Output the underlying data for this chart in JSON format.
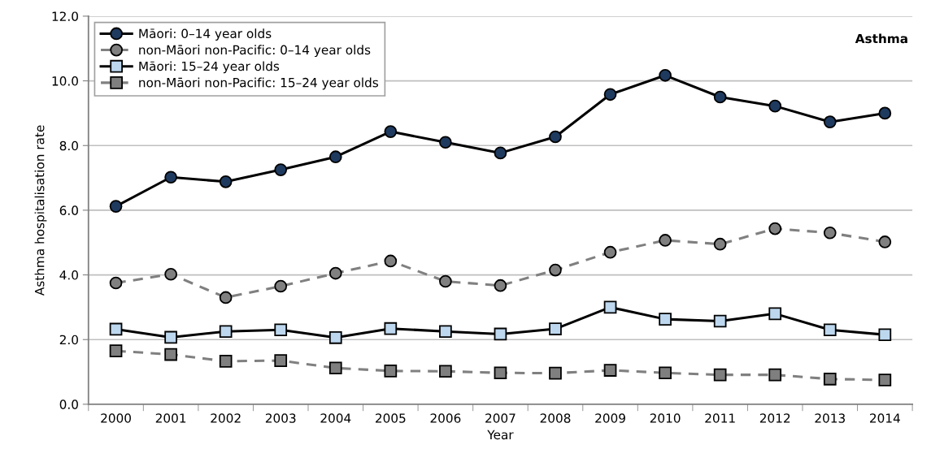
{
  "chart_data": {
    "type": "line",
    "title": "Asthma",
    "xlabel": "Year",
    "ylabel": "Asthma hospitalisation rate",
    "categories": [
      "2000",
      "2001",
      "2002",
      "2003",
      "2004",
      "2005",
      "2006",
      "2007",
      "2008",
      "2009",
      "2010",
      "2011",
      "2012",
      "2013",
      "2014"
    ],
    "series": [
      {
        "name": "Māori: 0–14 year olds",
        "color": "#1f3a5f",
        "marker": "circle",
        "line_style": "solid",
        "values": [
          6.12,
          7.02,
          6.88,
          7.25,
          7.65,
          8.43,
          8.1,
          7.77,
          8.27,
          9.58,
          10.17,
          9.5,
          9.22,
          8.73,
          9.0
        ]
      },
      {
        "name": "non-Māori non-Pacific: 0–14 year olds",
        "color": "#808080",
        "marker": "circle",
        "line_style": "dashed",
        "values": [
          3.75,
          4.02,
          3.3,
          3.65,
          4.05,
          4.43,
          3.8,
          3.67,
          4.15,
          4.7,
          5.07,
          4.95,
          5.43,
          5.3,
          5.02
        ]
      },
      {
        "name": "Māori: 15–24 year olds",
        "color": "#bdd7ee",
        "marker": "square",
        "line_style": "solid",
        "values": [
          2.32,
          2.07,
          2.25,
          2.3,
          2.06,
          2.34,
          2.25,
          2.17,
          2.33,
          3.0,
          2.63,
          2.57,
          2.8,
          2.3,
          2.15
        ]
      },
      {
        "name": "non-Māori non-Pacific: 15–24 year olds",
        "color": "#7f7f7f",
        "marker": "square",
        "line_style": "dashed",
        "values": [
          1.65,
          1.54,
          1.33,
          1.35,
          1.12,
          1.03,
          1.02,
          0.97,
          0.96,
          1.05,
          0.97,
          0.91,
          0.91,
          0.78,
          0.75
        ]
      }
    ],
    "ylim": [
      0,
      12
    ],
    "yticks": [
      {
        "value": 0,
        "label": "0.0"
      },
      {
        "value": 2,
        "label": "2.0"
      },
      {
        "value": 4,
        "label": "4.0"
      },
      {
        "value": 6,
        "label": "6.0"
      },
      {
        "value": 8,
        "label": "8.0"
      },
      {
        "value": 10,
        "label": "10.0"
      },
      {
        "value": 12,
        "label": "12.0"
      }
    ],
    "grid": "y",
    "legend": "top left"
  }
}
